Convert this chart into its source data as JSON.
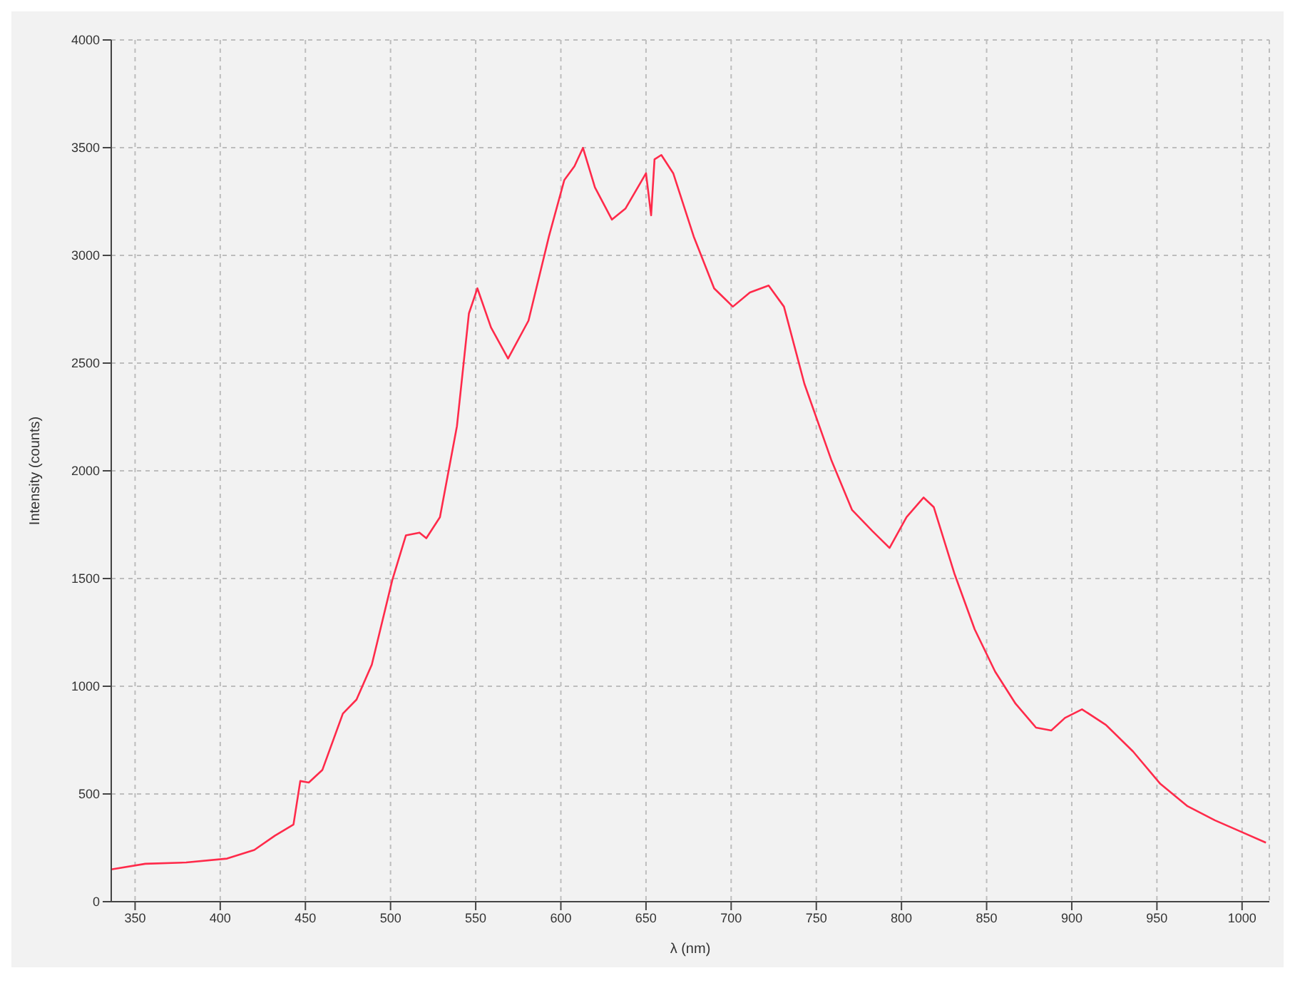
{
  "chart_data": {
    "type": "line",
    "xlabel": "λ (nm)",
    "ylabel": "Intensity (counts)",
    "xlim": [
      336,
      1016
    ],
    "xticks": [
      350,
      400,
      450,
      500,
      550,
      600,
      650,
      700,
      750,
      800,
      850,
      900,
      950,
      1000
    ],
    "ylim": [
      0,
      4000
    ],
    "yticks": [
      0,
      500,
      1000,
      1500,
      2000,
      2500,
      3000,
      3500,
      4000
    ],
    "grid": true,
    "marker": "none",
    "line_style": "solid",
    "series": [
      {
        "color": "#ff2a4a",
        "x": [
          336,
          356,
          380,
          404,
          420,
          432,
          443,
          447,
          452,
          460,
          472,
          480,
          489,
          501,
          509,
          517,
          521,
          529,
          539,
          546,
          551,
          559,
          569,
          581,
          593,
          602,
          608,
          613,
          620,
          630,
          638,
          650,
          653,
          655,
          659,
          666,
          678,
          690,
          701,
          711,
          722,
          731,
          743,
          759,
          771,
          783,
          793,
          803,
          813,
          819,
          831,
          843,
          855,
          867,
          879,
          888,
          896,
          906,
          920,
          936,
          952,
          968,
          984,
          1001,
          1014
        ],
        "values": [
          150,
          176,
          182,
          200,
          240,
          306,
          358,
          560,
          553,
          612,
          873,
          938,
          1100,
          1492,
          1700,
          1713,
          1687,
          1785,
          2208,
          2730,
          2847,
          2665,
          2521,
          2697,
          3088,
          3349,
          3414,
          3499,
          3316,
          3166,
          3218,
          3381,
          3186,
          3446,
          3466,
          3381,
          3088,
          2847,
          2762,
          2828,
          2860,
          2762,
          2404,
          2046,
          1818,
          1720,
          1642,
          1785,
          1876,
          1831,
          1525,
          1264,
          1068,
          919,
          808,
          795,
          853,
          893,
          821,
          697,
          547,
          443,
          378,
          319,
          274
        ]
      }
    ]
  }
}
